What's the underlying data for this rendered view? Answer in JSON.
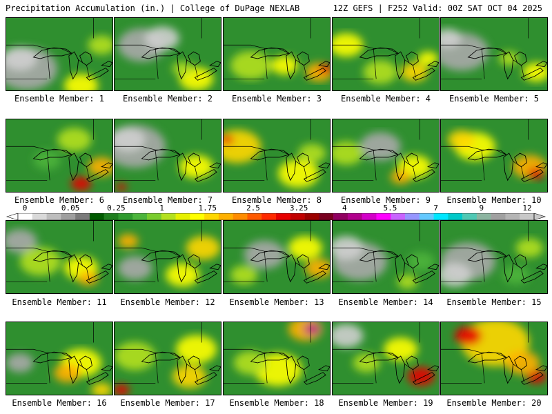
{
  "header": {
    "title": "Precipitation Accumulation (in.) | College of DuPage NEXLAB",
    "valid": "12Z GEFS | F252 Valid: 00Z SAT OCT 04 2025"
  },
  "colorbar": {
    "labels": [
      "0",
      "0.05",
      "0.25",
      "1",
      "1.75",
      "2.5",
      "3.25",
      "4",
      "5.5",
      "7",
      "9",
      "12"
    ],
    "colors": [
      "#ffffff",
      "#d9d9d9",
      "#bdbdbd",
      "#9e9e9e",
      "#7a7a7a",
      "#005a00",
      "#1e7d1e",
      "#2f9a2f",
      "#4cb43c",
      "#7acc2e",
      "#b4e01e",
      "#e6f000",
      "#ffff00",
      "#ffd700",
      "#ffb000",
      "#ff8c00",
      "#ff5a00",
      "#ff2a00",
      "#e60000",
      "#c00000",
      "#9a0000",
      "#780020",
      "#900060",
      "#b0008c",
      "#d200c8",
      "#ff00ff",
      "#c864ff",
      "#9696ff",
      "#64c8ff",
      "#00e6ff",
      "#00c8c8",
      "#50c8b4",
      "#8cb4a0",
      "#a0a0a0",
      "#b4b4b4",
      "#c8c8c8"
    ]
  },
  "panels": [
    {
      "caption": "Ensemble Member: 1",
      "blobs": [
        [
          30,
          75,
          45,
          "#a8a8a8"
        ],
        [
          20,
          60,
          25,
          "#cfcfcf"
        ],
        [
          110,
          100,
          25,
          "#ffff00"
        ],
        [
          140,
          40,
          20,
          "#b4e01e"
        ]
      ]
    },
    {
      "caption": "Ensemble Member: 2",
      "blobs": [
        [
          40,
          40,
          35,
          "#a8a8a8"
        ],
        [
          70,
          30,
          25,
          "#cfcfcf"
        ],
        [
          120,
          90,
          25,
          "#ffff00"
        ],
        [
          100,
          75,
          15,
          "#b4e01e"
        ]
      ]
    },
    {
      "caption": "Ensemble Member: 3",
      "blobs": [
        [
          40,
          70,
          30,
          "#b4e01e"
        ],
        [
          90,
          70,
          20,
          "#ffff00"
        ],
        [
          140,
          80,
          20,
          "#ffb000"
        ],
        [
          150,
          75,
          10,
          "#e60000"
        ]
      ]
    },
    {
      "caption": "Ensemble Member: 4",
      "blobs": [
        [
          20,
          40,
          25,
          "#ffff00"
        ],
        [
          70,
          80,
          25,
          "#b4e01e"
        ],
        [
          120,
          80,
          20,
          "#ffd700"
        ],
        [
          140,
          60,
          15,
          "#ffff00"
        ]
      ]
    },
    {
      "caption": "Ensemble Member: 5",
      "blobs": [
        [
          30,
          50,
          40,
          "#a8a8a8"
        ],
        [
          10,
          30,
          20,
          "#cfcfcf"
        ],
        [
          140,
          80,
          20,
          "#ffff00"
        ],
        [
          100,
          60,
          15,
          "#b4e01e"
        ]
      ]
    },
    {
      "caption": "Ensemble Member: 6",
      "blobs": [
        [
          100,
          30,
          25,
          "#b4e01e"
        ],
        [
          140,
          70,
          20,
          "#ffb000"
        ],
        [
          110,
          95,
          15,
          "#e60000"
        ],
        [
          60,
          60,
          20,
          "#4cb43c"
        ]
      ]
    },
    {
      "caption": "Ensemble Member: 7",
      "blobs": [
        [
          30,
          40,
          45,
          "#a8a8a8"
        ],
        [
          20,
          30,
          25,
          "#cfcfcf"
        ],
        [
          120,
          70,
          25,
          "#ffff00"
        ],
        [
          10,
          100,
          8,
          "#e60000"
        ]
      ]
    },
    {
      "caption": "Ensemble Member: 8",
      "blobs": [
        [
          20,
          40,
          35,
          "#ffd700"
        ],
        [
          5,
          30,
          10,
          "#e60000"
        ],
        [
          110,
          80,
          30,
          "#ffff00"
        ],
        [
          130,
          50,
          20,
          "#b4e01e"
        ]
      ]
    },
    {
      "caption": "Ensemble Member: 9",
      "blobs": [
        [
          70,
          40,
          30,
          "#a8a8a8"
        ],
        [
          20,
          50,
          25,
          "#b4e01e"
        ],
        [
          120,
          70,
          25,
          "#ffff00"
        ],
        [
          100,
          85,
          15,
          "#ffb000"
        ]
      ]
    },
    {
      "caption": "Ensemble Member: 10",
      "blobs": [
        [
          50,
          40,
          30,
          "#ffff00"
        ],
        [
          30,
          30,
          20,
          "#ffd700"
        ],
        [
          130,
          70,
          25,
          "#ffb000"
        ],
        [
          140,
          80,
          12,
          "#e60000"
        ]
      ]
    },
    {
      "caption": "Ensemble Member: 11",
      "blobs": [
        [
          20,
          30,
          25,
          "#a8a8a8"
        ],
        [
          50,
          60,
          30,
          "#b4e01e"
        ],
        [
          110,
          70,
          25,
          "#ffff00"
        ],
        [
          120,
          85,
          15,
          "#ffb000"
        ]
      ]
    },
    {
      "caption": "Ensemble Member: 12",
      "blobs": [
        [
          30,
          70,
          25,
          "#a8a8a8"
        ],
        [
          20,
          30,
          15,
          "#ffb000"
        ],
        [
          130,
          40,
          25,
          "#ffd700"
        ],
        [
          100,
          80,
          25,
          "#ffff00"
        ]
      ]
    },
    {
      "caption": "Ensemble Member: 13",
      "blobs": [
        [
          60,
          50,
          30,
          "#a8a8a8"
        ],
        [
          120,
          40,
          25,
          "#ffff00"
        ],
        [
          140,
          70,
          20,
          "#ffb000"
        ],
        [
          30,
          80,
          20,
          "#b4e01e"
        ]
      ]
    },
    {
      "caption": "Ensemble Member: 14",
      "blobs": [
        [
          40,
          60,
          40,
          "#a8a8a8"
        ],
        [
          20,
          40,
          25,
          "#cfcfcf"
        ],
        [
          130,
          60,
          20,
          "#4cb43c"
        ],
        [
          110,
          90,
          15,
          "#b4e01e"
        ]
      ]
    },
    {
      "caption": "Ensemble Member: 15",
      "blobs": [
        [
          40,
          60,
          40,
          "#a8a8a8"
        ],
        [
          20,
          80,
          25,
          "#cfcfcf"
        ],
        [
          130,
          40,
          20,
          "#b4e01e"
        ],
        [
          110,
          80,
          20,
          "#4cb43c"
        ]
      ]
    },
    {
      "caption": "Ensemble Member: 16",
      "blobs": [
        [
          110,
          60,
          30,
          "#ffff00"
        ],
        [
          90,
          75,
          20,
          "#ffb000"
        ],
        [
          20,
          60,
          20,
          "#a8a8a8"
        ],
        [
          140,
          100,
          15,
          "#ffd700"
        ]
      ]
    },
    {
      "caption": "Ensemble Member: 17",
      "blobs": [
        [
          30,
          50,
          30,
          "#b4e01e"
        ],
        [
          120,
          40,
          30,
          "#ffff00"
        ],
        [
          10,
          100,
          12,
          "#e60000"
        ],
        [
          110,
          80,
          25,
          "#ffd700"
        ]
      ]
    },
    {
      "caption": "Ensemble Member: 18",
      "blobs": [
        [
          120,
          10,
          25,
          "#ffb000"
        ],
        [
          130,
          10,
          12,
          "#b0008c"
        ],
        [
          80,
          70,
          35,
          "#ffff00"
        ],
        [
          40,
          60,
          25,
          "#b4e01e"
        ]
      ]
    },
    {
      "caption": "Ensemble Member: 19",
      "blobs": [
        [
          20,
          20,
          25,
          "#cfcfcf"
        ],
        [
          100,
          40,
          25,
          "#ffff00"
        ],
        [
          130,
          80,
          20,
          "#e60000"
        ],
        [
          50,
          60,
          20,
          "#b4e01e"
        ]
      ]
    },
    {
      "caption": "Ensemble Member: 20",
      "blobs": [
        [
          80,
          30,
          50,
          "#ffd700"
        ],
        [
          40,
          20,
          20,
          "#e60000"
        ],
        [
          140,
          80,
          15,
          "#e60000"
        ],
        [
          120,
          60,
          25,
          "#ffb000"
        ]
      ]
    }
  ]
}
